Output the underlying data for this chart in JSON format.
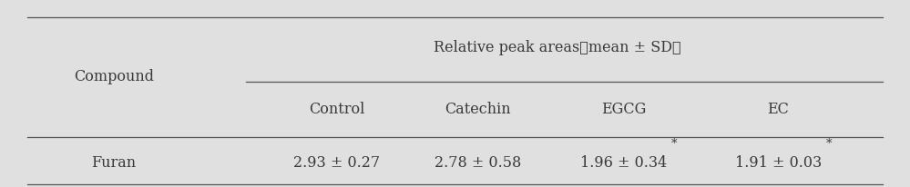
{
  "bg_color": "#e0e0e0",
  "col1_header": "Compound",
  "span_header": "Relative peak areas（mean ± SD）",
  "sub_headers": [
    "Control",
    "Catechin",
    "EGCG",
    "EC"
  ],
  "row_label": "Furan",
  "row_values": [
    "2.93 ± 0.27",
    "2.78 ± 0.58",
    "1.96 ± 0.34",
    "1.91 ± 0.03"
  ],
  "row_asterisk": [
    false,
    false,
    true,
    true
  ],
  "font_size": 11.5,
  "text_color": "#3a3a3a",
  "line_color": "#555555"
}
